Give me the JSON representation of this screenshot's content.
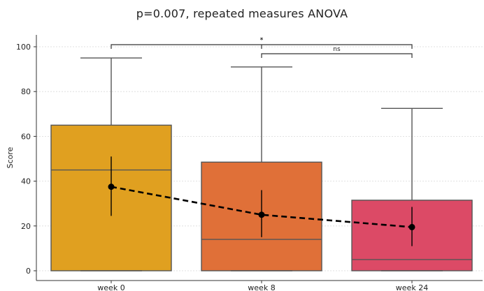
{
  "chart_data": {
    "type": "box",
    "title": "p=0.007, repeated measures ANOVA",
    "xlabel": "",
    "ylabel": "Score",
    "ylim": [
      0,
      100
    ],
    "yticks": [
      0,
      20,
      40,
      60,
      80,
      100
    ],
    "grid": true,
    "categories": [
      "week 0",
      "week 8",
      "week 24"
    ],
    "colors": [
      "#E0A020",
      "#E07038",
      "#DC4A66"
    ],
    "boxes": [
      {
        "q1": 0,
        "median": 45,
        "q3": 65,
        "whisker_low": 0,
        "whisker_high": 95
      },
      {
        "q1": 0,
        "median": 14,
        "q3": 48.5,
        "whisker_low": 0,
        "whisker_high": 91
      },
      {
        "q1": 0,
        "median": 5,
        "q3": 31.5,
        "whisker_low": 0,
        "whisker_high": 72.5
      }
    ],
    "mean_line": {
      "means": [
        37.5,
        25,
        19.5
      ],
      "ci_low": [
        24.5,
        15,
        11
      ],
      "ci_high": [
        51,
        36,
        28.5
      ],
      "style": "dashed",
      "color": "#000000"
    },
    "significance": [
      {
        "from": 0,
        "to": 2,
        "label": "*"
      },
      {
        "from": 1,
        "to": 2,
        "label": "ns"
      }
    ],
    "extra_marker": {
      "at": 1,
      "label": "*"
    }
  }
}
